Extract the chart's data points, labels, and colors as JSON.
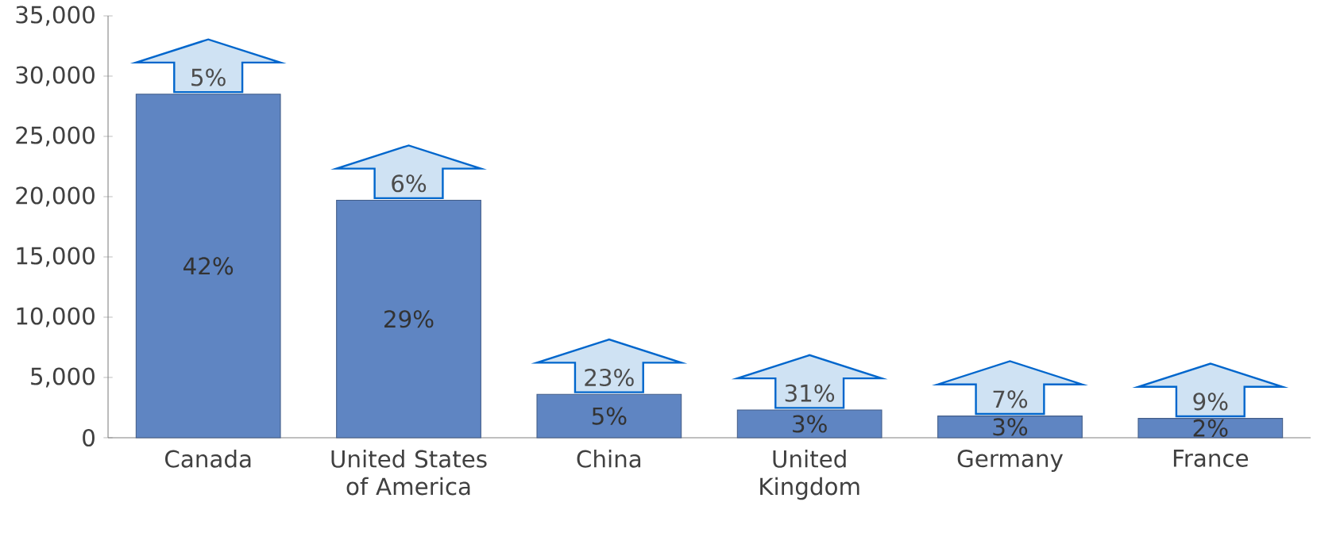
{
  "chart_data": {
    "type": "bar",
    "categories": [
      "Canada",
      "United States of America",
      "China",
      "United Kingdom",
      "Germany",
      "France"
    ],
    "values": [
      28500,
      19700,
      3600,
      2300,
      1800,
      1600
    ],
    "color": "#5f85c2",
    "ylim": [
      0,
      35000
    ],
    "yticks": [
      {
        "value": 0,
        "label": "0"
      },
      {
        "value": 5000,
        "label": "5,000"
      },
      {
        "value": 10000,
        "label": "10,000"
      },
      {
        "value": 15000,
        "label": "15,000"
      },
      {
        "value": 20000,
        "label": "20,000"
      },
      {
        "value": 25000,
        "label": "25,000"
      },
      {
        "value": 30000,
        "label": "30,000"
      },
      {
        "value": 35000,
        "label": "35,000"
      }
    ],
    "grid": false,
    "annotations": [
      {
        "text": "5%",
        "x": "Canada",
        "y": 28500
      },
      {
        "text": "6%",
        "x": "United States of America",
        "y": 19700
      },
      {
        "text": "23%",
        "x": "China",
        "y": 3600
      },
      {
        "text": "31%",
        "x": "United Kingdom",
        "y": 2300
      },
      {
        "text": "7%",
        "x": "Germany",
        "y": 1800
      },
      {
        "text": "9%",
        "x": "France",
        "y": 1600
      },
      "42%",
      "29%",
      "5%",
      "3%",
      "3%",
      "2%"
    ]
  }
}
